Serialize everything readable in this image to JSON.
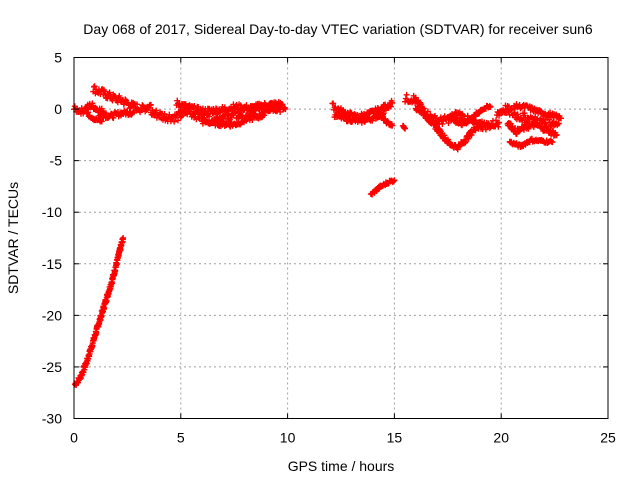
{
  "chart_data": {
    "type": "scatter",
    "title": "Day 068 of 2017, Sidereal Day-to-day VTEC variation (SDTVAR) for receiver sun6",
    "xlabel": "GPS time / hours",
    "ylabel": "SDTVAR / TECUs",
    "xlim": [
      0,
      25
    ],
    "ylim": [
      -30,
      5
    ],
    "x_ticks": [
      "0",
      "5",
      "10",
      "15",
      "20",
      "25"
    ],
    "y_ticks": [
      "5",
      "0",
      "-5",
      "-10",
      "-15",
      "-20",
      "-25",
      "-30"
    ],
    "grid": true,
    "marker": "plus",
    "colors": {
      "series": "#ff0000",
      "grid": "#a0a0a0",
      "axes": "#000000"
    },
    "series": [
      {
        "segments": [
          {
            "points": [
              [
                0.05,
                -26.7
              ],
              [
                0.3,
                -26.0
              ],
              [
                0.6,
                -24.5
              ],
              [
                0.9,
                -22.5
              ],
              [
                1.2,
                -20.5
              ],
              [
                1.5,
                -18.5
              ],
              [
                1.8,
                -16.5
              ],
              [
                2.05,
                -14.5
              ],
              [
                2.3,
                -12.5
              ]
            ],
            "band": 0.5
          },
          {
            "points": [
              [
                0.0,
                0.0
              ],
              [
                0.4,
                -0.2
              ],
              [
                0.8,
                0.4
              ],
              [
                1.1,
                0.0
              ],
              [
                1.5,
                -0.4
              ]
            ],
            "band": 0.6
          },
          {
            "points": [
              [
                0.9,
                2.0
              ],
              [
                1.3,
                1.6
              ],
              [
                1.8,
                1.1
              ],
              [
                2.3,
                0.8
              ],
              [
                2.7,
                0.3
              ],
              [
                3.2,
                0.0
              ],
              [
                3.6,
                0.4
              ]
            ],
            "band": 0.8
          },
          {
            "points": [
              [
                1.2,
                -0.5
              ],
              [
                1.7,
                -0.7
              ],
              [
                2.2,
                -0.4
              ],
              [
                2.8,
                -0.3
              ]
            ],
            "band": 0.5
          },
          {
            "points": [
              [
                0.6,
                -0.4
              ],
              [
                1.0,
                -1.0
              ],
              [
                1.3,
                -1.2
              ]
            ],
            "band": 0.4
          },
          {
            "points": [
              [
                3.6,
                -0.3
              ],
              [
                4.2,
                -0.7
              ],
              [
                4.8,
                -0.8
              ],
              [
                5.3,
                -0.2
              ],
              [
                5.8,
                -0.6
              ],
              [
                6.4,
                -0.9
              ],
              [
                7.0,
                -0.8
              ],
              [
                7.6,
                -0.6
              ],
              [
                8.2,
                -0.4
              ],
              [
                8.8,
                0.0
              ],
              [
                9.4,
                0.2
              ],
              [
                9.9,
                0.0
              ]
            ],
            "band": 0.9
          },
          {
            "points": [
              [
                4.8,
                0.6
              ],
              [
                5.3,
                0.2
              ],
              [
                6.0,
                -0.2
              ],
              [
                6.8,
                -0.1
              ],
              [
                7.5,
                0.2
              ],
              [
                8.3,
                0.1
              ],
              [
                9.0,
                0.4
              ],
              [
                9.7,
                0.5
              ]
            ],
            "band": 0.6
          },
          {
            "points": [
              [
                6.0,
                -1.2
              ],
              [
                6.8,
                -1.4
              ],
              [
                7.5,
                -1.5
              ],
              [
                8.2,
                -0.9
              ],
              [
                8.9,
                -0.6
              ]
            ],
            "band": 0.5
          },
          {
            "points": [
              [
                12.1,
                0.3
              ],
              [
                12.6,
                -0.3
              ],
              [
                13.2,
                -0.8
              ],
              [
                13.8,
                -0.5
              ],
              [
                14.4,
                0.0
              ],
              [
                14.9,
                0.6
              ]
            ],
            "band": 0.6
          },
          {
            "points": [
              [
                12.2,
                -0.6
              ],
              [
                12.8,
                -1.0
              ],
              [
                13.4,
                -1.2
              ],
              [
                14.0,
                -0.9
              ],
              [
                14.5,
                -0.4
              ]
            ],
            "band": 0.4
          },
          {
            "points": [
              [
                14.3,
                -0.5
              ],
              [
                14.6,
                -1.2
              ],
              [
                14.9,
                -1.6
              ]
            ],
            "band": 0.3
          },
          {
            "points": [
              [
                13.9,
                -8.3
              ],
              [
                14.3,
                -7.6
              ],
              [
                14.7,
                -7.1
              ],
              [
                15.0,
                -6.9
              ]
            ],
            "band": 0.3
          },
          {
            "points": [
              [
                15.4,
                -1.6
              ],
              [
                15.5,
                -1.9
              ]
            ],
            "band": 0.1
          },
          {
            "points": [
              [
                15.5,
                1.0
              ],
              [
                15.9,
                1.0
              ],
              [
                16.3,
                0.0
              ],
              [
                16.7,
                -0.8
              ],
              [
                17.1,
                -1.2
              ],
              [
                17.5,
                -1.0
              ],
              [
                18.0,
                -0.5
              ],
              [
                18.4,
                -1.0
              ],
              [
                18.9,
                -1.6
              ],
              [
                19.4,
                -1.6
              ],
              [
                19.9,
                -1.3
              ]
            ],
            "band": 0.8
          },
          {
            "points": [
              [
                16.0,
                0.2
              ],
              [
                16.4,
                -0.5
              ],
              [
                16.8,
                -1.4
              ],
              [
                17.2,
                -2.4
              ],
              [
                17.6,
                -3.4
              ],
              [
                18.0,
                -3.7
              ],
              [
                18.4,
                -2.8
              ],
              [
                18.8,
                -1.8
              ],
              [
                19.1,
                -1.2
              ]
            ],
            "band": 0.5
          },
          {
            "points": [
              [
                17.6,
                -0.8
              ],
              [
                18.1,
                -1.5
              ],
              [
                18.6,
                -1.0
              ],
              [
                19.1,
                0.0
              ],
              [
                19.5,
                0.2
              ]
            ],
            "band": 0.4
          },
          {
            "points": [
              [
                19.8,
                -0.4
              ],
              [
                20.2,
                0.0
              ],
              [
                20.7,
                -0.6
              ],
              [
                21.2,
                -0.9
              ],
              [
                21.7,
                -1.2
              ],
              [
                22.2,
                -1.3
              ],
              [
                22.7,
                -1.4
              ]
            ],
            "band": 0.9
          },
          {
            "points": [
              [
                20.3,
                -1.3
              ],
              [
                20.7,
                -2.2
              ],
              [
                21.1,
                -1.8
              ],
              [
                21.6,
                -1.5
              ],
              [
                22.1,
                -2.0
              ],
              [
                22.6,
                -2.5
              ]
            ],
            "band": 0.5
          },
          {
            "points": [
              [
                20.4,
                -3.2
              ],
              [
                20.9,
                -3.6
              ],
              [
                21.4,
                -3.0
              ],
              [
                21.9,
                -3.1
              ],
              [
                22.4,
                -3.2
              ]
            ],
            "band": 0.3
          },
          {
            "points": [
              [
                20.6,
                0.3
              ],
              [
                21.2,
                0.2
              ],
              [
                21.8,
                -0.3
              ],
              [
                22.4,
                -0.6
              ],
              [
                22.8,
                -0.9
              ]
            ],
            "band": 0.4
          }
        ]
      }
    ]
  }
}
